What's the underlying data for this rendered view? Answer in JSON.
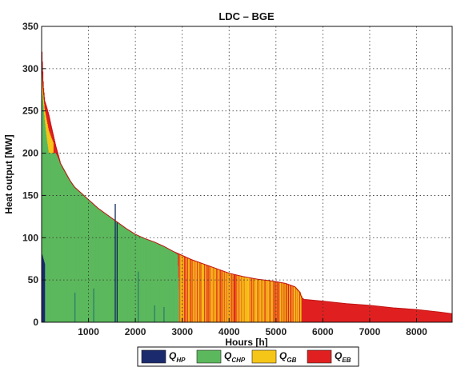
{
  "chart_data": {
    "type": "area",
    "title": "LDC – BGE",
    "xlabel": "Hours [h]",
    "ylabel": "Heat output [MW]",
    "xlim": [
      0,
      8760
    ],
    "ylim": [
      0,
      350
    ],
    "xticks": [
      1000,
      2000,
      3000,
      4000,
      5000,
      6000,
      7000,
      8000
    ],
    "yticks": [
      0,
      50,
      100,
      150,
      200,
      250,
      300,
      350
    ],
    "grid": true,
    "legend_position": "bottom-center",
    "series": [
      {
        "name": "Q",
        "subscript": "HP",
        "color": "#1a2a6c"
      },
      {
        "name": "Q",
        "subscript": "CHP",
        "color": "#5cb85c"
      },
      {
        "name": "Q",
        "subscript": "GB",
        "color": "#f5c518"
      },
      {
        "name": "Q",
        "subscript": "EB",
        "color": "#e02020"
      }
    ],
    "total_load_curve": {
      "x": [
        0,
        30,
        60,
        100,
        150,
        200,
        300,
        400,
        500,
        600,
        700,
        800,
        1000,
        1200,
        1400,
        1600,
        1800,
        2000,
        2200,
        2400,
        2600,
        2800,
        3000,
        3200,
        3500,
        3800,
        4000,
        4300,
        4600,
        4900,
        5200,
        5400,
        5500,
        5550,
        5600,
        6000,
        6500,
        7000,
        7500,
        8000,
        8500,
        8760
      ],
      "y": [
        320,
        280,
        262,
        255,
        245,
        232,
        208,
        188,
        178,
        168,
        160,
        155,
        145,
        135,
        127,
        119,
        111,
        104,
        99,
        95,
        90,
        84,
        79,
        74,
        68,
        62,
        58,
        54,
        51,
        49,
        46,
        42,
        36,
        29,
        27,
        25,
        22,
        20,
        17,
        15,
        12,
        10
      ]
    },
    "chp_capacity_curve": {
      "x": [
        0,
        30,
        60,
        100,
        150,
        300,
        400,
        500,
        600,
        700,
        800,
        1000,
        1200,
        1400,
        1600,
        1800,
        2000,
        2200,
        2400,
        2600,
        2800,
        2900,
        2950
      ],
      "y": [
        280,
        260,
        240,
        220,
        200,
        200,
        188,
        178,
        168,
        160,
        155,
        145,
        135,
        127,
        119,
        111,
        104,
        99,
        95,
        90,
        84,
        80,
        0
      ]
    },
    "regions": [
      {
        "series": "HP",
        "x_range": [
          0,
          60
        ],
        "note": ""
      },
      {
        "series": "CHP",
        "x_range": [
          0,
          2930
        ]
      },
      {
        "series": "GB+EB mix",
        "x_range": [
          2930,
          5550
        ]
      },
      {
        "series": "EB",
        "x_range": [
          5550,
          8760
        ]
      }
    ]
  }
}
